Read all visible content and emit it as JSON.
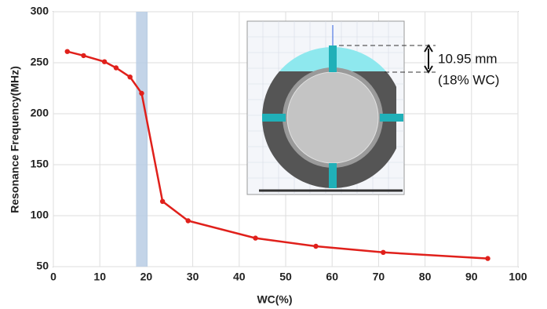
{
  "chart_data": {
    "type": "line",
    "x_label": "WC(%)",
    "y_label": "Resonance Frequency(MHz)",
    "series": [
      {
        "color": "#e0201b",
        "x": [
          3,
          6.5,
          11,
          13.5,
          16.5,
          19,
          23.5,
          29,
          43.5,
          56.5,
          71,
          93.5
        ],
        "values": [
          261,
          257,
          251,
          245,
          236,
          220,
          114,
          95,
          78,
          70,
          64,
          58
        ]
      }
    ],
    "highlight_band": [
      17.8,
      20.3
    ],
    "highlight_color": "#b8cce4",
    "xlim": [
      0,
      100
    ],
    "xticks": [
      0,
      10,
      20,
      30,
      40,
      50,
      60,
      70,
      80,
      90,
      100
    ],
    "ylim": [
      50,
      300
    ],
    "yticks": [
      50,
      100,
      150,
      200,
      250,
      300
    ],
    "grid": true,
    "annotations": [
      "10.95 mm",
      "(18% WC)"
    ]
  }
}
